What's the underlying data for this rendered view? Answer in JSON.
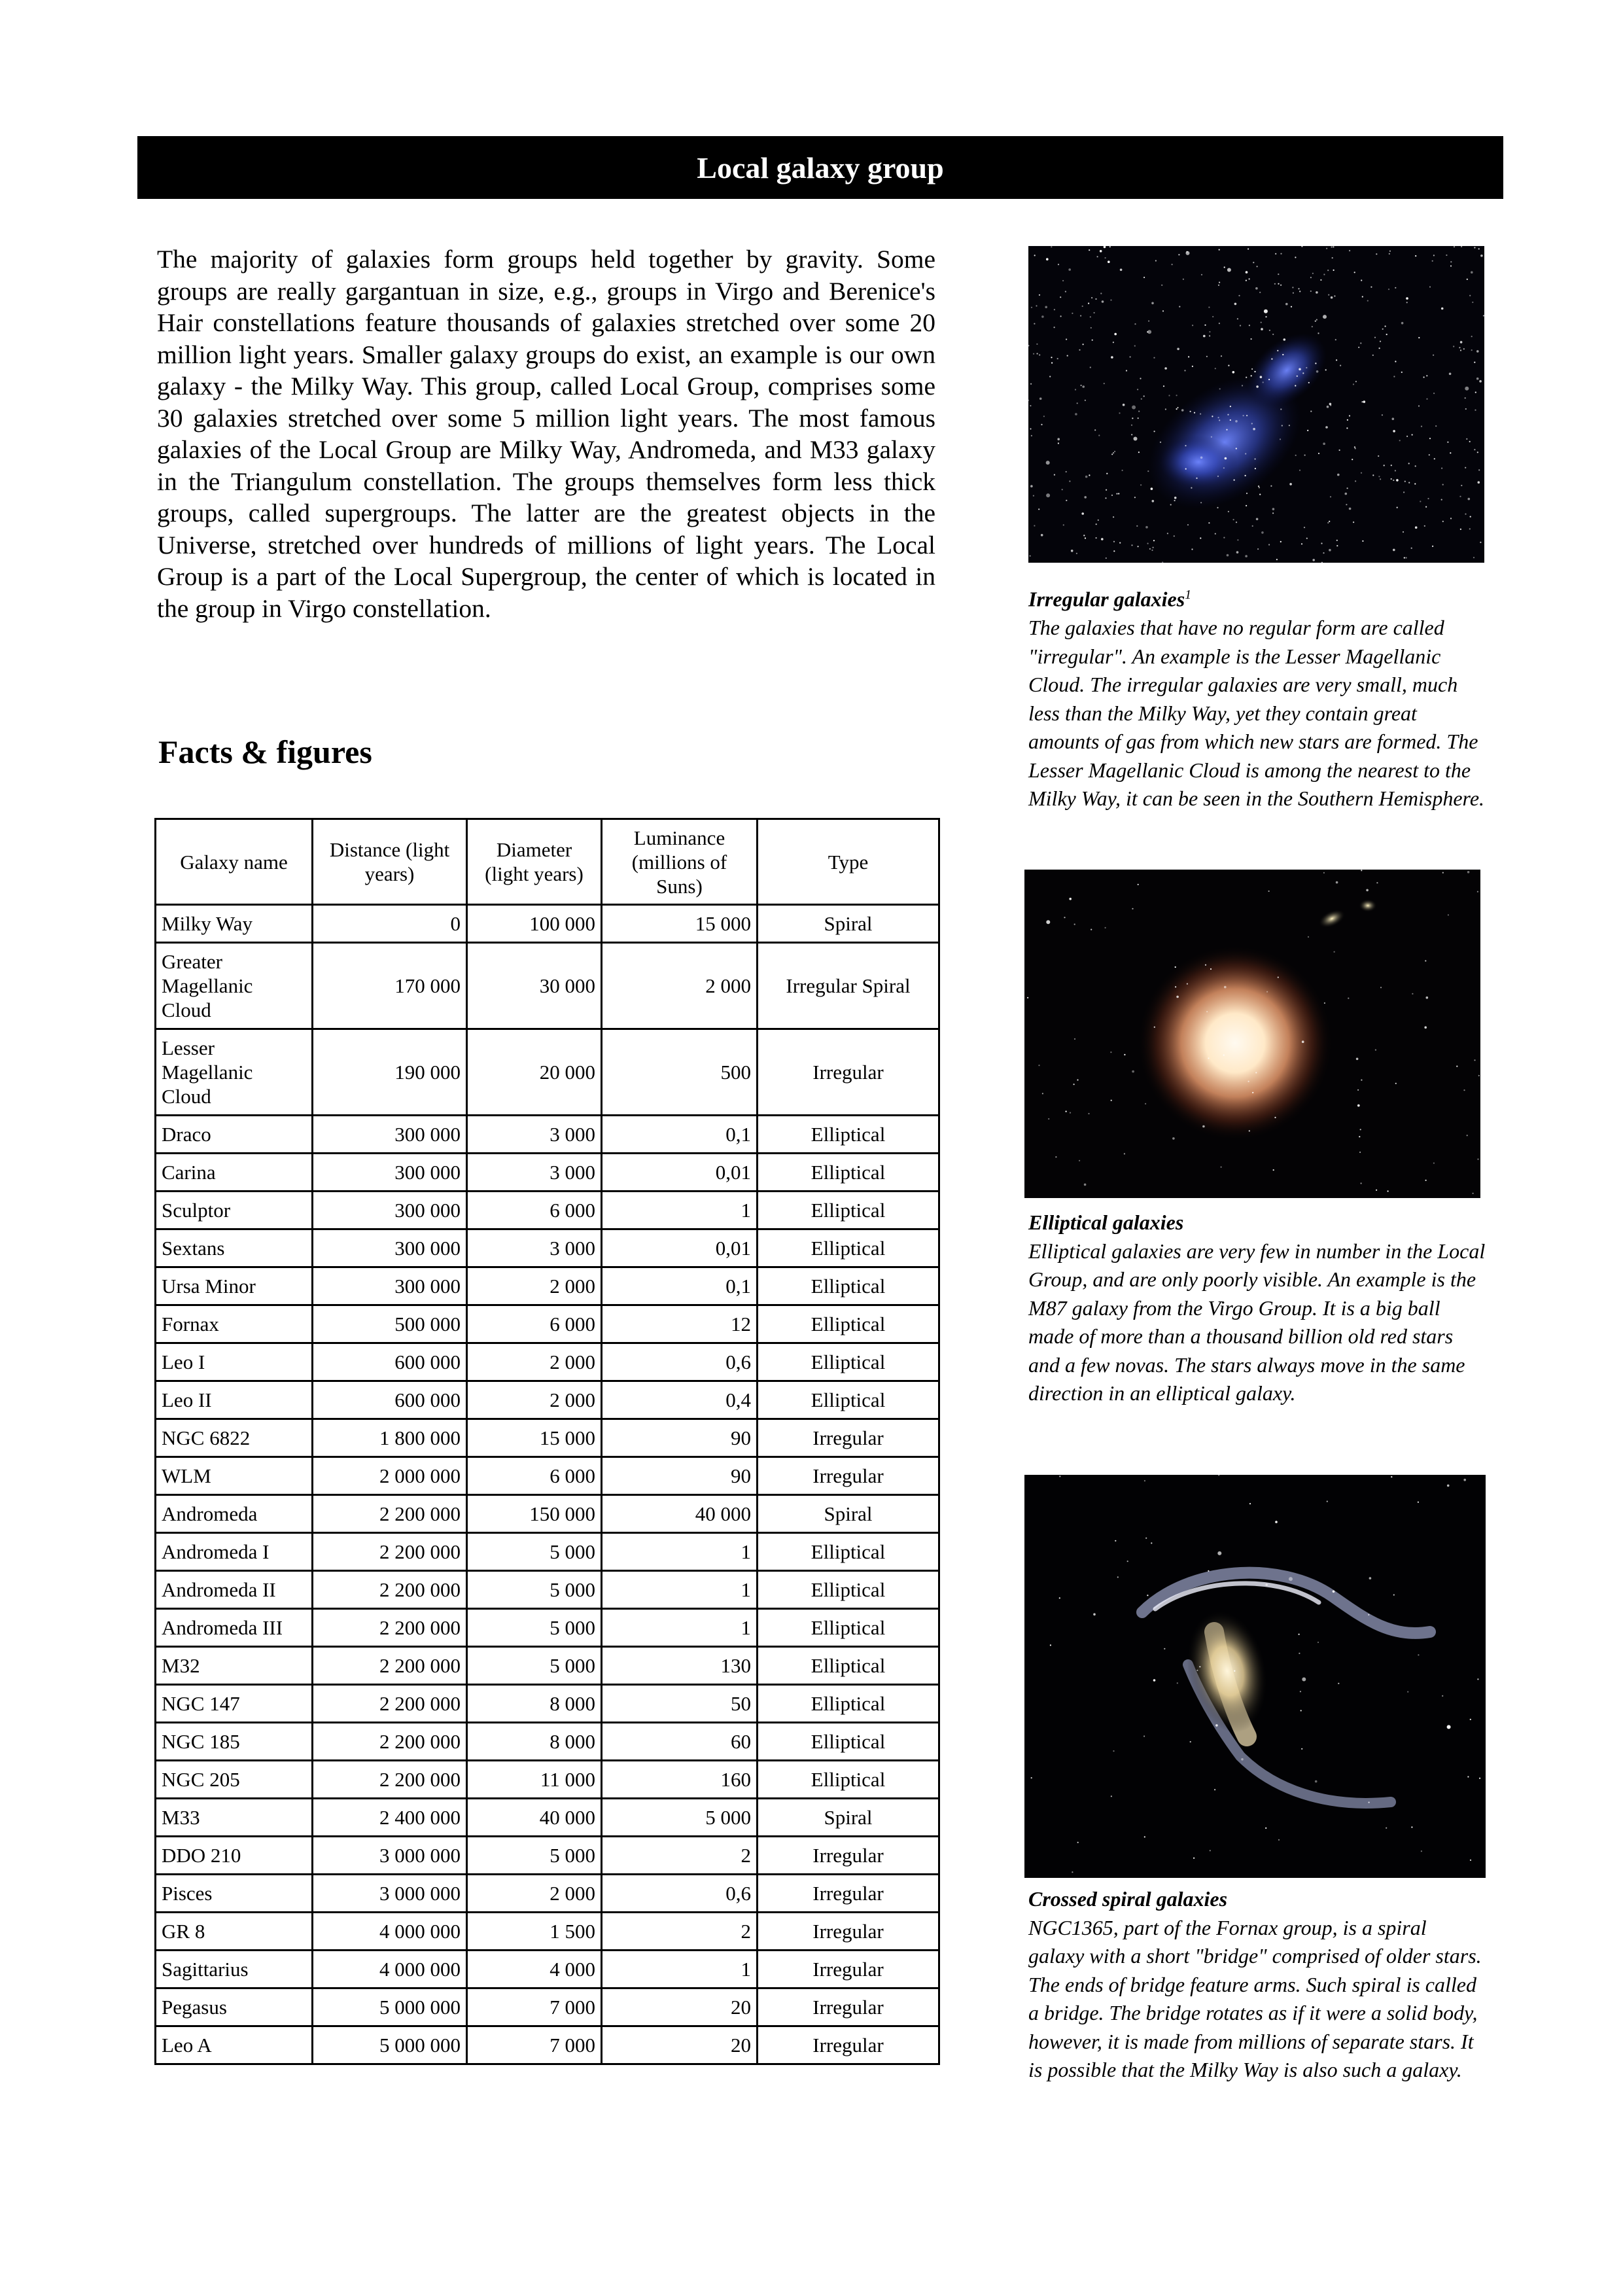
{
  "header": {
    "title": "Local galaxy group"
  },
  "intro": {
    "text": "The majority of galaxies form groups held together by gravity. Some groups are really gargantuan in size, e.g., groups in Virgo and Berenice's Hair constellations feature thousands of galaxies stretched over some 20 million light years. Smaller galaxy groups do exist, an example is our own galaxy - the Milky Way. This group, called Local Group, comprises some 30 galaxies stretched over some 5 million light years. The most famous galaxies of the Local Group are Milky Way, Andromeda, and M33 galaxy in the Triangulum constellation. The groups themselves form less thick groups, called supergroups. The latter are the greatest objects in the Universe, stretched over hundreds of millions of light years. The Local Group is a part of the Local Supergroup, the center of which is located in the group in Virgo constellation."
  },
  "facts": {
    "heading": "Facts & figures",
    "columns": [
      "Galaxy name",
      "Distance (light years)",
      "Diameter (light years)",
      "Luminance (millions of Suns)",
      "Type"
    ],
    "rows": [
      [
        "Milky Way",
        "0",
        "100 000",
        "15 000",
        "Spiral"
      ],
      [
        "Greater Magellanic Cloud",
        "170 000",
        "30 000",
        "2 000",
        "Irregular Spiral"
      ],
      [
        "Lesser Magellanic Cloud",
        "190 000",
        "20 000",
        "500",
        "Irregular"
      ],
      [
        "Draco",
        "300 000",
        "3 000",
        "0,1",
        "Elliptical"
      ],
      [
        "Carina",
        "300 000",
        "3 000",
        "0,01",
        "Elliptical"
      ],
      [
        "Sculptor",
        "300 000",
        "6 000",
        "1",
        "Elliptical"
      ],
      [
        "Sextans",
        "300 000",
        "3 000",
        "0,01",
        "Elliptical"
      ],
      [
        "Ursa Minor",
        "300 000",
        "2 000",
        "0,1",
        "Elliptical"
      ],
      [
        "Fornax",
        "500 000",
        "6 000",
        "12",
        "Elliptical"
      ],
      [
        "Leo I",
        "600 000",
        "2 000",
        "0,6",
        "Elliptical"
      ],
      [
        "Leo II",
        "600 000",
        "2 000",
        "0,4",
        "Elliptical"
      ],
      [
        "NGC 6822",
        "1 800 000",
        "15 000",
        "90",
        "Irregular"
      ],
      [
        "WLM",
        "2 000 000",
        "6 000",
        "90",
        "Irregular"
      ],
      [
        "Andromeda",
        "2 200 000",
        "150 000",
        "40 000",
        "Spiral"
      ],
      [
        "Andromeda I",
        "2 200 000",
        "5 000",
        "1",
        "Elliptical"
      ],
      [
        "Andromeda II",
        "2 200 000",
        "5 000",
        "1",
        "Elliptical"
      ],
      [
        "Andromeda III",
        "2 200 000",
        "5 000",
        "1",
        "Elliptical"
      ],
      [
        "M32",
        "2 200 000",
        "5 000",
        "130",
        "Elliptical"
      ],
      [
        "NGC 147",
        "2 200 000",
        "8 000",
        "50",
        "Elliptical"
      ],
      [
        "NGC 185",
        "2 200 000",
        "8 000",
        "60",
        "Elliptical"
      ],
      [
        "NGC 205",
        "2 200 000",
        "11 000",
        "160",
        "Elliptical"
      ],
      [
        "M33",
        "2 400 000",
        "40 000",
        "5 000",
        "Spiral"
      ],
      [
        "DDO 210",
        "3 000 000",
        "5 000",
        "2",
        "Irregular"
      ],
      [
        "Pisces",
        "3 000 000",
        "2 000",
        "0,6",
        "Irregular"
      ],
      [
        "GR 8",
        "4 000 000",
        "1 500",
        "2",
        "Irregular"
      ],
      [
        "Sagittarius",
        "4 000 000",
        "4 000",
        "1",
        "Irregular"
      ],
      [
        "Pegasus",
        "5 000 000",
        "7 000",
        "20",
        "Irregular"
      ],
      [
        "Leo A",
        "5 000 000",
        "7 000",
        "20",
        "Irregular"
      ]
    ]
  },
  "captions": {
    "irregular": {
      "title": "Irregular galaxies",
      "footnote": "1",
      "text": "The galaxies that have no regular form are called \"irregular\". An example is the Lesser Magellanic Cloud. The irregular galaxies are very small, much less than the Milky Way, yet they contain great amounts of gas from which new stars are formed. The Lesser Magellanic Cloud is among the nearest to the Milky Way, it can be seen in the Southern Hemisphere."
    },
    "elliptical": {
      "title": "Elliptical galaxies",
      "text": "Elliptical galaxies are very few in number in the Local Group, and are only poorly visible. An example is the M87 galaxy from the Virgo Group. It is a big ball made of more than a thousand billion old red stars and a few novas. The stars always move in the same direction in an elliptical galaxy."
    },
    "spiral": {
      "title": "Crossed spiral galaxies",
      "text": "NGC1365, part of the Fornax group, is a spiral galaxy with a short \"bridge\" comprised of older stars. The ends of bridge feature arms. Such spiral is called a bridge. The bridge rotates as if it were a solid body, however, it is made from millions of separate stars. It is possible that the Milky Way is also such a galaxy."
    }
  }
}
